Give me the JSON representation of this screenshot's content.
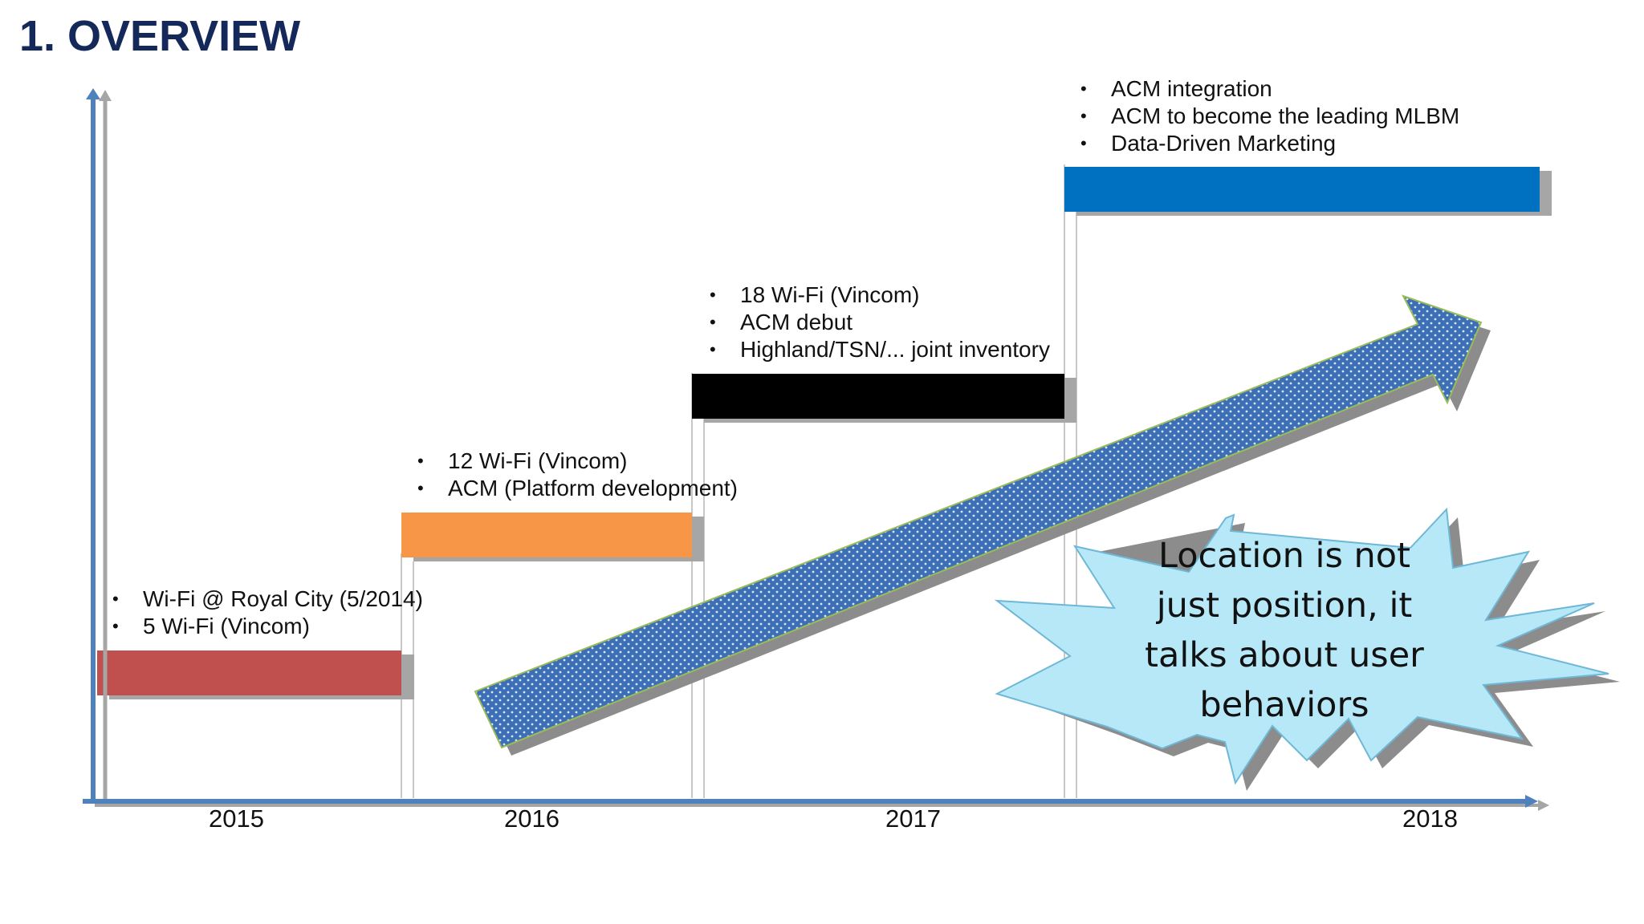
{
  "slide": {
    "title": "1. OVERVIEW"
  },
  "timeline": {
    "years": [
      "2015",
      "2016",
      "2017",
      "2018"
    ],
    "phases": [
      {
        "color": "#c0504d",
        "bullets": [
          "Wi-Fi @ Royal City (5/2014)",
          "5 Wi-Fi (Vincom)"
        ]
      },
      {
        "color": "#f79646",
        "bullets": [
          "12 Wi-Fi (Vincom)",
          "ACM (Platform development)"
        ]
      },
      {
        "color": "#000000",
        "bullets": [
          "18 Wi-Fi (Vincom)",
          "ACM debut",
          "Highland/TSN/... joint inventory"
        ]
      },
      {
        "color": "#0070c0",
        "bullets": [
          "ACM integration",
          "ACM to become the leading MLBM",
          "Data-Driven Marketing"
        ]
      }
    ]
  },
  "callout": {
    "lines": [
      "Location is not",
      "just position, it",
      "talks about user",
      "behaviors"
    ],
    "fill": "#b7e8f8"
  },
  "colors": {
    "axis": "#4f81bd",
    "axis_shadow": "#a6a6a6",
    "trend_arrow": "#3d6fb6",
    "title": "#14285a"
  }
}
